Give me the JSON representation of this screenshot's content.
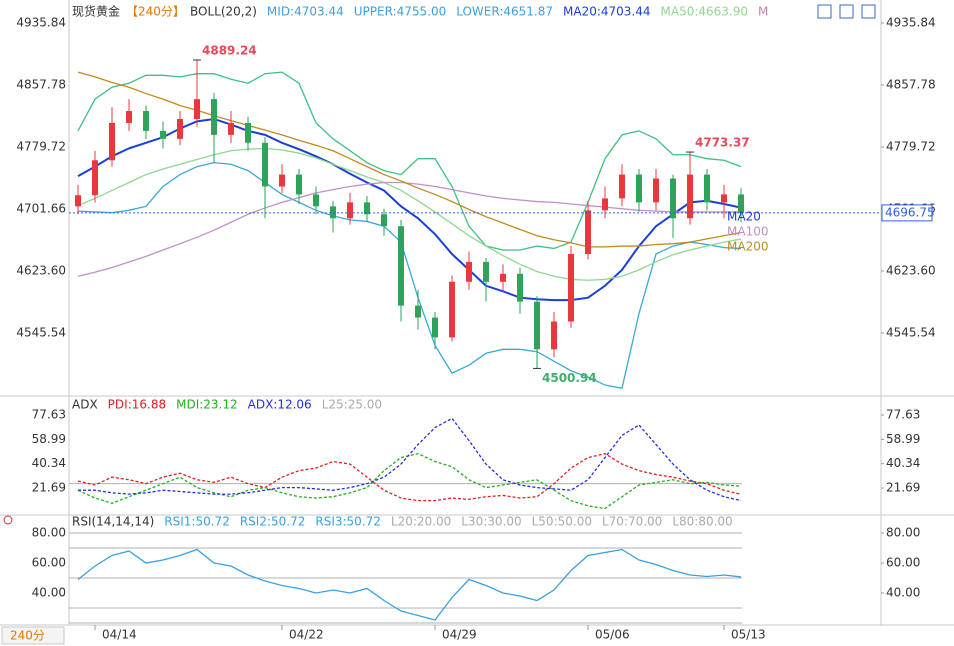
{
  "header": {
    "symbol": "现货黄金",
    "period": "【240分】"
  },
  "footer_period": "240分",
  "chart_data": [
    {
      "type": "candlestick",
      "legend": [
        {
          "text": "BOLL(20,2)",
          "color": "#333333"
        },
        {
          "text": "MID:4703.44",
          "color": "#3aa0e0"
        },
        {
          "text": "UPPER:4755.00",
          "color": "#3aa0e0"
        },
        {
          "text": "LOWER:4651.87",
          "color": "#3aa0e0"
        },
        {
          "text": "MA20:4703.44",
          "color": "#1a3fd8"
        },
        {
          "text": "MA50:4663.90",
          "color": "#8fd88f"
        },
        {
          "text": "M",
          "color": "#c080c0"
        }
      ],
      "categories": [
        null,
        "04/14",
        null,
        null,
        null,
        null,
        null,
        null,
        null,
        null,
        null,
        null,
        "04/22",
        null,
        null,
        null,
        null,
        null,
        null,
        null,
        null,
        "04/29",
        null,
        null,
        null,
        null,
        null,
        null,
        null,
        null,
        "05/06",
        null,
        null,
        null,
        null,
        null,
        null,
        null,
        "05/13",
        null
      ],
      "candles": {
        "open": [
          4705,
          4719,
          4763,
          4810,
          4825,
          4800,
          4790,
          4815,
          4840,
          4795,
          4810,
          4785,
          4730,
          4745,
          4720,
          4705,
          4690,
          4710,
          4695,
          4680,
          4580,
          4565,
          4540,
          4610,
          4635,
          4610,
          4620,
          4585,
          4525,
          4560,
          4645,
          4700,
          4715,
          4745,
          4710,
          4740,
          4690,
          4745,
          4710,
          4720
        ],
        "close": [
          4719,
          4763,
          4810,
          4825,
          4800,
          4790,
          4815,
          4840,
          4795,
          4810,
          4785,
          4730,
          4745,
          4720,
          4705,
          4690,
          4710,
          4695,
          4680,
          4580,
          4565,
          4540,
          4610,
          4635,
          4610,
          4620,
          4585,
          4525,
          4560,
          4645,
          4700,
          4715,
          4745,
          4710,
          4740,
          4690,
          4745,
          4710,
          4720,
          4696.75
        ],
        "high": [
          4732,
          4775,
          4830,
          4840,
          4832,
          4812,
          4825,
          4889.24,
          4848,
          4825,
          4818,
          4792,
          4758,
          4752,
          4730,
          4712,
          4722,
          4718,
          4702,
          4688,
          4600,
          4572,
          4618,
          4648,
          4640,
          4632,
          4628,
          4592,
          4572,
          4655,
          4712,
          4730,
          4758,
          4752,
          4752,
          4745,
          4773.37,
          4752,
          4732,
          4728
        ],
        "low": [
          4695,
          4710,
          4755,
          4800,
          4790,
          4778,
          4782,
          4805,
          4760,
          4785,
          4775,
          4690,
          4722,
          4708,
          4695,
          4672,
          4682,
          4685,
          4668,
          4560,
          4550,
          4525,
          4535,
          4600,
          4585,
          4598,
          4570,
          4500.94,
          4515,
          4552,
          4638,
          4690,
          4705,
          4698,
          4700,
          4665,
          4682,
          4700,
          4690,
          4685
        ]
      },
      "colors": {
        "up": "#e8383d",
        "down": "#2fa35a",
        "peak": "#e8485a",
        "trough": "#3fae6a",
        "price": "#3060e0"
      },
      "series": [
        {
          "color": "#3dc080",
          "values": [
            4800,
            4840,
            4855,
            4860,
            4870,
            4870,
            4868,
            4872,
            4872,
            4865,
            4860,
            4872,
            4874,
            4860,
            4810,
            4790,
            4775,
            4760,
            4750,
            4745,
            4765,
            4765,
            4730,
            4680,
            4655,
            4650,
            4650,
            4655,
            4652,
            4660,
            4710,
            4765,
            4795,
            4800,
            4790,
            4770,
            4770,
            4765,
            4763,
            4755
          ]
        },
        {
          "name": "MA20",
          "color": "#1a3fd8",
          "values": [
            4743,
            4755,
            4768,
            4778,
            4785,
            4792,
            4803,
            4812,
            4815,
            4808,
            4800,
            4795,
            4785,
            4777,
            4768,
            4758,
            4746,
            4735,
            4725,
            4705,
            4690,
            4670,
            4645,
            4625,
            4605,
            4598,
            4590,
            4588,
            4587,
            4587,
            4590,
            4605,
            4625,
            4655,
            4680,
            4695,
            4710,
            4712,
            4708,
            4703.44
          ]
        },
        {
          "color": "#3aa8d8",
          "values": [
            4699,
            4698,
            4697,
            4700,
            4705,
            4730,
            4745,
            4755,
            4760,
            4758,
            4750,
            4735,
            4720,
            4710,
            4700,
            4693,
            4688,
            4686,
            4680,
            4660,
            4590,
            4530,
            4495,
            4505,
            4520,
            4525,
            4525,
            4522,
            4510,
            4498,
            4490,
            4480,
            4476,
            4570,
            4645,
            4655,
            4660,
            4657,
            4653,
            4651.87
          ]
        },
        {
          "color": "#8fd88f",
          "values": [
            4706,
            4715,
            4725,
            4735,
            4745,
            4752,
            4758,
            4764,
            4770,
            4775,
            4777,
            4778,
            4776,
            4772,
            4766,
            4758,
            4750,
            4742,
            4735,
            4725,
            4712,
            4698,
            4683,
            4668,
            4655,
            4643,
            4632,
            4623,
            4617,
            4613,
            4612,
            4613,
            4617,
            4625,
            4635,
            4644,
            4650,
            4655,
            4660,
            4663.9
          ]
        },
        {
          "name": "MA100",
          "color": "#c090c8",
          "values": [
            4617,
            4622,
            4628,
            4635,
            4642,
            4650,
            4658,
            4666,
            4675,
            4685,
            4695,
            4703,
            4710,
            4716,
            4722,
            4726,
            4730,
            4733,
            4735,
            4735,
            4733,
            4730,
            4726,
            4722,
            4718,
            4715,
            4713,
            4711,
            4710,
            4708,
            4706,
            4704,
            4702,
            4700,
            4699,
            4698,
            4698,
            4698,
            4698,
            4698
          ]
        },
        {
          "name": "MA200",
          "color": "#c08a20",
          "values": [
            4874,
            4868,
            4861,
            4855,
            4847,
            4840,
            4832,
            4826,
            4819,
            4813,
            4807,
            4801,
            4795,
            4788,
            4782,
            4775,
            4765,
            4755,
            4745,
            4737,
            4728,
            4720,
            4711,
            4701,
            4692,
            4684,
            4676,
            4668,
            4663,
            4659,
            4654,
            4654,
            4655,
            4655,
            4657,
            4658,
            4660,
            4664,
            4668,
            4672
          ]
        }
      ],
      "ylim": [
        4467.48,
        4958.5
      ],
      "yticks": [
        4935.84,
        4857.78,
        4779.72,
        4701.66,
        {
          "value": 4623.6,
          "label": "4623.60"
        },
        4545.54
      ]
    },
    {
      "type": "line",
      "line_style": "dashed",
      "legend": [
        {
          "text": "ADX",
          "color": "#333333"
        },
        {
          "text": "PDI:16.88",
          "color": "#e02020"
        },
        {
          "text": "MDI:23.12",
          "color": "#20b020"
        },
        {
          "text": "ADX:12.06",
          "color": "#2030e0"
        },
        {
          "text": "L25:25.00",
          "color": "#aaaaaa"
        }
      ],
      "levels": [
        25
      ],
      "series": [
        {
          "color": "#e02020",
          "values": [
            27,
            24,
            30,
            28,
            25,
            30,
            33,
            28,
            26,
            30,
            25,
            22,
            30,
            35,
            37,
            42,
            40,
            30,
            20,
            14,
            12,
            12,
            14,
            13,
            15,
            16,
            14,
            15,
            25,
            37,
            45,
            48,
            40,
            35,
            32,
            30,
            27,
            25,
            20,
            16.88
          ]
        },
        {
          "color": "#20b020",
          "values": [
            20,
            14,
            10,
            15,
            20,
            25,
            30,
            22,
            18,
            15,
            20,
            22,
            18,
            15,
            14,
            15,
            18,
            22,
            35,
            45,
            48,
            42,
            38,
            28,
            22,
            24,
            26,
            28,
            20,
            12,
            8,
            6,
            15,
            24,
            26,
            28,
            25,
            26,
            24,
            23.12
          ]
        },
        {
          "color": "#2030e0",
          "values": [
            20,
            20,
            18,
            17,
            18,
            20,
            19,
            18,
            17,
            17,
            18,
            20,
            22,
            22,
            21,
            20,
            22,
            25,
            30,
            40,
            55,
            68,
            75,
            58,
            40,
            28,
            24,
            22,
            21,
            20,
            28,
            45,
            62,
            70,
            55,
            40,
            28,
            20,
            15,
            12.06
          ]
        }
      ],
      "ylim": [
        1,
        90.66
      ],
      "yticks": [
        77.63,
        58.99,
        40.34,
        21.69
      ]
    },
    {
      "type": "line",
      "line_style": "solid",
      "legend": [
        {
          "text": "RSI(14,14,14)",
          "color": "#333333"
        },
        {
          "text": "RSI1:50.72",
          "color": "#3aa0e0"
        },
        {
          "text": "RSI2:50.72",
          "color": "#3aa0e0"
        },
        {
          "text": "RSI3:50.72",
          "color": "#3aa0e0"
        },
        {
          "text": "L20:20.00",
          "color": "#aaaaaa"
        },
        {
          "text": "L30:30.00",
          "color": "#aaaaaa"
        },
        {
          "text": "L50:50.00",
          "color": "#aaaaaa"
        },
        {
          "text": "L70:70.00",
          "color": "#aaaaaa"
        },
        {
          "text": "L80:80.00",
          "color": "#aaaaaa"
        }
      ],
      "levels": [
        20,
        30,
        50,
        70,
        80
      ],
      "series": [
        {
          "color": "#3aa0e0",
          "values": [
            49,
            58,
            65,
            68,
            60,
            62,
            65,
            69,
            60,
            58,
            52,
            48,
            45,
            43,
            40,
            42,
            40,
            43,
            35,
            28,
            25,
            22,
            37,
            49,
            45,
            40,
            38,
            35,
            42,
            55,
            65,
            67,
            69,
            62,
            59,
            55,
            52,
            51,
            52,
            50.72
          ]
        }
      ],
      "ylim": [
        18.67,
        92
      ],
      "yticks": [
        {
          "value": 80,
          "label": "80.00"
        },
        {
          "value": 60,
          "label": "60.00"
        },
        {
          "value": 40,
          "label": "40.00"
        }
      ]
    }
  ]
}
